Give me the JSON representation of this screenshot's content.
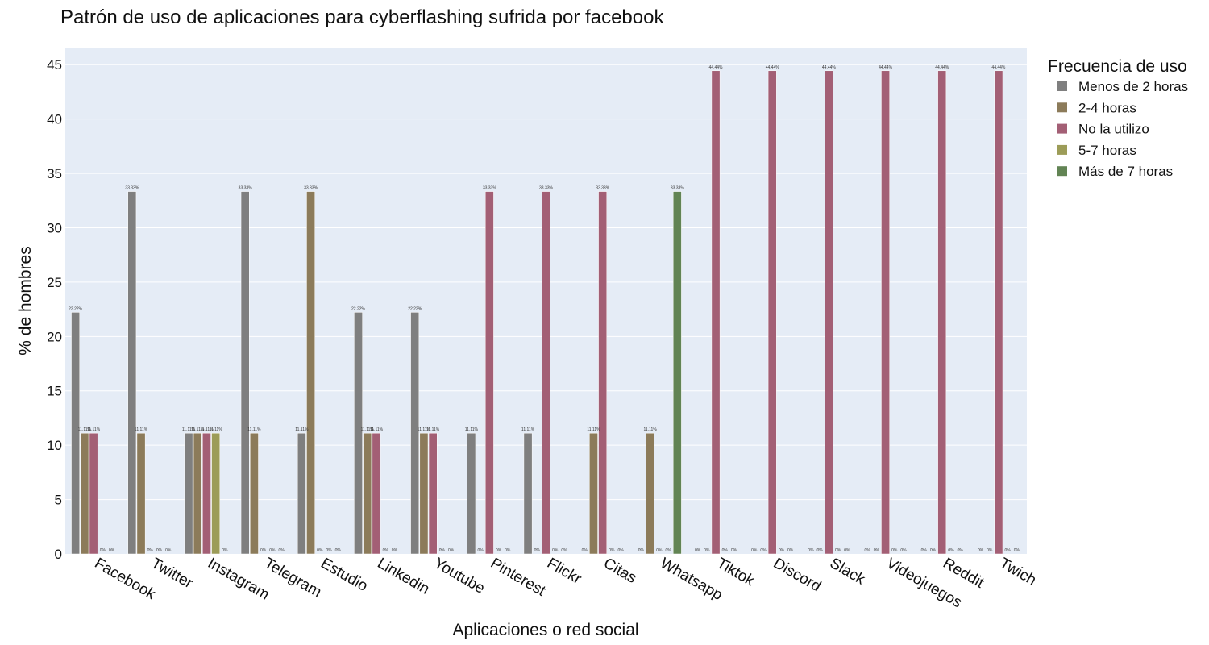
{
  "chart_data": {
    "type": "bar",
    "title": "Patrón de uso de aplicaciones para cyberflashing sufrida por facebook",
    "xlabel": "Aplicaciones o red social",
    "ylabel": "% de hombres",
    "ylim": [
      0,
      46.5
    ],
    "yticks": [
      0,
      5,
      10,
      15,
      20,
      25,
      30,
      35,
      40,
      45
    ],
    "grid": true,
    "legend_title": "Frecuencia de uso",
    "legend_position": "right",
    "categories": [
      "Facebook",
      "Twitter",
      "Instagram",
      "Telegram",
      "Estudio",
      "Linkedin",
      "Youtube",
      "Pinterest",
      "Flickr",
      "Citas",
      "Whatsapp",
      "Tiktok",
      "Discord",
      "Slack",
      "Videojuegos",
      "Reddit",
      "Twich"
    ],
    "series": [
      {
        "name": "Menos de 2 horas",
        "color": "#7f7f7f",
        "values": [
          22.22,
          33.33,
          11.11,
          33.33,
          11.11,
          22.22,
          22.22,
          11.11,
          11.11,
          0,
          0,
          0,
          0,
          0,
          0,
          0,
          0
        ]
      },
      {
        "name": "2-4 horas",
        "color": "#8c7b5a",
        "values": [
          11.11,
          11.11,
          11.11,
          11.11,
          33.33,
          11.11,
          11.11,
          0,
          0,
          11.11,
          11.11,
          0,
          0,
          0,
          0,
          0,
          0
        ]
      },
      {
        "name": "No la utilizo",
        "color": "#a35f75",
        "values": [
          11.11,
          0,
          11.11,
          0,
          0,
          11.11,
          11.11,
          33.33,
          33.33,
          33.33,
          0,
          44.44,
          44.44,
          44.44,
          44.44,
          44.44,
          44.44
        ]
      },
      {
        "name": "5-7 horas",
        "color": "#9c9c58",
        "values": [
          0,
          0,
          11.11,
          0,
          0,
          0,
          0,
          0,
          0,
          0,
          0,
          0,
          0,
          0,
          0,
          0,
          0
        ]
      },
      {
        "name": "Más de 7 horas",
        "color": "#628454",
        "values": [
          0,
          0,
          0,
          0,
          0,
          0,
          0,
          0,
          0,
          0,
          33.33,
          0,
          0,
          0,
          0,
          0,
          0
        ]
      }
    ],
    "bar_label_suffix": "%"
  }
}
